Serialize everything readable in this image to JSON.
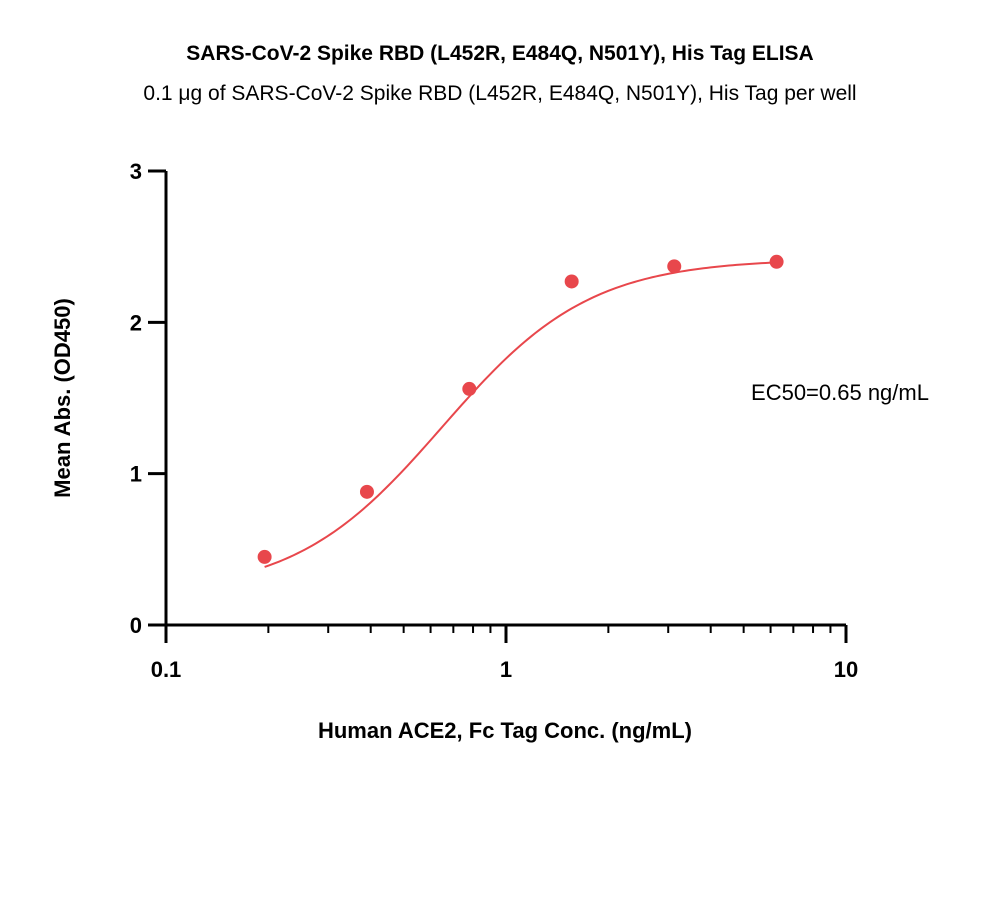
{
  "chart_data": {
    "type": "scatter",
    "title": "SARS-CoV-2 Spike RBD (L452R, E484Q, N501Y), His Tag ELISA",
    "subtitle": "0.1 μg of SARS-CoV-2 Spike RBD (L452R, E484Q, N501Y), His Tag per well",
    "xlabel": "Human ACE2, Fc Tag Conc. (ng/mL)",
    "ylabel": "Mean Abs. (OD450)",
    "x_scale": "log",
    "xlim": [
      0.1,
      10
    ],
    "ylim": [
      0,
      3
    ],
    "x_ticks": [
      0.1,
      1,
      10
    ],
    "x_tick_labels": [
      "0.1",
      "1",
      "10"
    ],
    "y_ticks": [
      0,
      1,
      2,
      3
    ],
    "y_tick_labels": [
      "0",
      "1",
      "2",
      "3"
    ],
    "grid": false,
    "colors": {
      "series": "#e8474c",
      "axis": "#000000"
    },
    "points": [
      {
        "x": 0.195,
        "y": 0.45
      },
      {
        "x": 0.39,
        "y": 0.88
      },
      {
        "x": 0.78,
        "y": 1.56
      },
      {
        "x": 1.56,
        "y": 2.27
      },
      {
        "x": 3.125,
        "y": 2.37
      },
      {
        "x": 6.25,
        "y": 2.4
      }
    ],
    "fit": {
      "type": "4PL",
      "bottom": 0.2,
      "top": 2.42,
      "ec50": 0.65,
      "hill": 2.0
    },
    "annotation": "EC50=0.65 ng/mL"
  }
}
